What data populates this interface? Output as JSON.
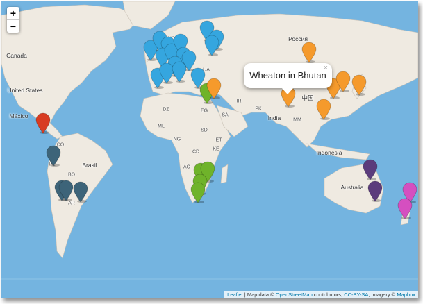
{
  "zoom": {
    "in_label": "+",
    "out_label": "−"
  },
  "popup": {
    "text": "Wheaton in Bhutan",
    "close_label": "×"
  },
  "attribution": {
    "leaflet": "Leaflet",
    "sep": " | Map data © ",
    "osm": "OpenStreetMap",
    "contrib": " contributors, ",
    "license": "CC-BY-SA",
    "imagery": ", Imagery © ",
    "mapbox": "Mapbox"
  },
  "labels": {
    "canada": "Canada",
    "united_states": "United States",
    "mexico": "México",
    "brasil": "Brasil",
    "rossiya": "Россия",
    "india": "India",
    "china": "中国",
    "indonesia": "Indonesia",
    "australia": "Australia",
    "co": "CO",
    "pe": "PE",
    "bo": "BO",
    "ar": "AR",
    "no": "NO",
    "ua": "UA",
    "tr": "TR",
    "ir": "IR",
    "pk": "PK",
    "dz": "DZ",
    "eg": "EG",
    "sa": "SA",
    "ml": "ML",
    "sd": "SD",
    "ng": "NG",
    "et": "ET",
    "cd": "CD",
    "ke": "KE",
    "ao": "AO",
    "mm": "MM"
  },
  "colors": {
    "ocean": "#74b4e0",
    "land": "#efeae1",
    "blue_marker": "#35a6df",
    "orange_marker": "#f59a2c",
    "green_marker": "#6fb32a",
    "red_marker": "#d83c22",
    "slate_marker": "#3d6479",
    "purple_marker": "#5b3c7c",
    "pink_marker": "#d54fc0"
  },
  "markers": [
    {
      "name": "marker-northamerica-red",
      "color": "#d83c22"
    },
    {
      "name": "marker-southamerica-1",
      "color": "#3d6479"
    },
    {
      "name": "marker-southamerica-2",
      "color": "#3d6479"
    },
    {
      "name": "marker-southamerica-3",
      "color": "#3d6479"
    },
    {
      "name": "marker-southamerica-4",
      "color": "#3d6479"
    },
    {
      "name": "marker-europe",
      "color": "#35a6df"
    },
    {
      "name": "marker-africa",
      "color": "#6fb32a"
    },
    {
      "name": "marker-asia",
      "color": "#f59a2c"
    },
    {
      "name": "marker-australia",
      "color": "#5b3c7c"
    },
    {
      "name": "marker-newzealand",
      "color": "#d54fc0"
    }
  ]
}
